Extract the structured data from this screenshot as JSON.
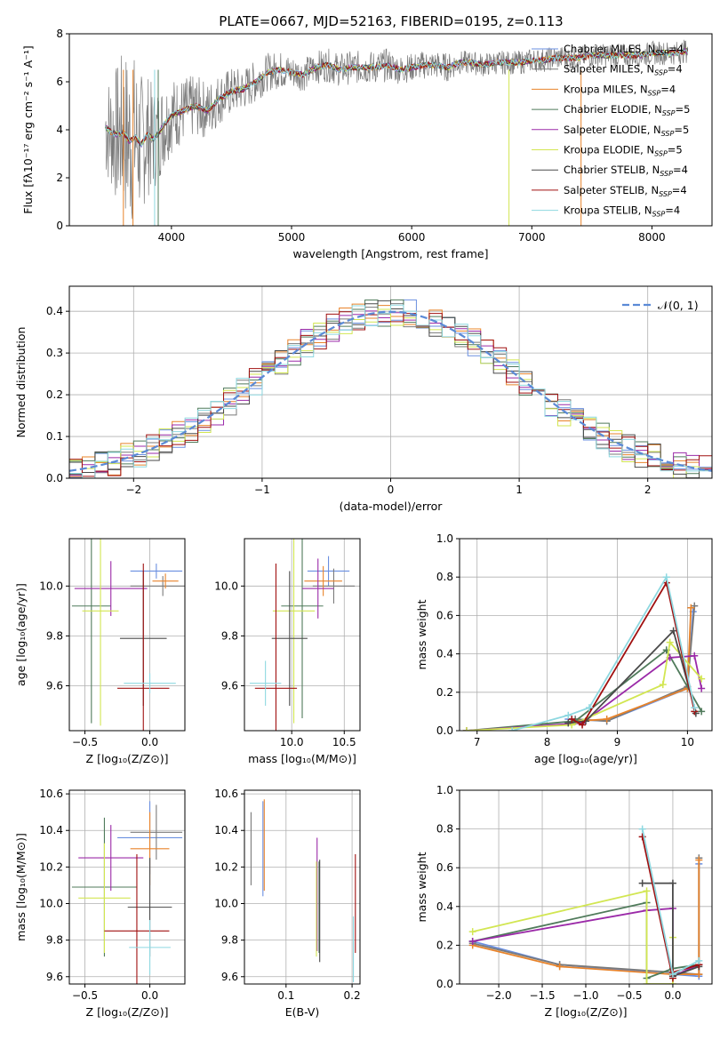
{
  "figure_title": "PLATE=0667, MJD=52163, FIBERID=0195, z=0.113",
  "colors": {
    "Chabrier MILES": "#6a8fe0",
    "Salpeter MILES": "#7a7a7a",
    "Kroupa MILES": "#e8832a",
    "Chabrier ELODIE": "#4f7a5a",
    "Salpeter ELODIE": "#9b2aa8",
    "Kroupa ELODIE": "#d2e652",
    "Chabrier STELIB": "#4a4a4a",
    "Salpeter STELIB": "#a01010",
    "Kroupa STELIB": "#8ed8e0"
  },
  "chart_data": [
    {
      "id": "spectrum",
      "type": "line",
      "title": "",
      "xlabel": "wavelength [Angstrom, rest frame]",
      "ylabel": "Flux [fλ10⁻¹⁷ erg cm⁻² s⁻¹ A⁻¹]",
      "xlim": [
        3150,
        8500
      ],
      "ylim": [
        0,
        8
      ],
      "xticks": [
        4000,
        5000,
        6000,
        7000,
        8000
      ],
      "yticks": [
        0,
        2,
        4,
        6,
        8
      ],
      "grid": false,
      "legend_position": "right",
      "legend": [
        "Chabrier MILES, N$_{SSP}$=4",
        "Salpeter MILES, N$_{SSP}$=4",
        "Kroupa MILES, N$_{SSP}$=4",
        "Chabrier ELODIE, N$_{SSP}$=5",
        "Salpeter ELODIE, N$_{SSP}$=5",
        "Kroupa ELODIE, N$_{SSP}$=5",
        "Chabrier STELIB, N$_{SSP}$=4",
        "Salpeter STELIB, N$_{SSP}$=4",
        "Kroupa STELIB, N$_{SSP}$=4"
      ],
      "legend_display": [
        "Chabrier MILES, N",
        "Salpeter MILES, N",
        "Kroupa MILES, N",
        "Chabrier ELODIE, N",
        "Salpeter ELODIE, N",
        "Kroupa ELODIE, N",
        "Chabrier STELIB, N",
        "Salpeter STELIB, N",
        "Kroupa STELIB, N"
      ],
      "legend_counts": [
        "=4",
        "=4",
        "=4",
        "=5",
        "=5",
        "=5",
        "=4",
        "=4",
        "=4"
      ],
      "legend_sub": "SSP",
      "data_x": [
        3450,
        3500,
        3550,
        3600,
        3650,
        3700,
        3750,
        3800,
        3850,
        3900,
        3950,
        4000,
        4100,
        4200,
        4300,
        4400,
        4500,
        4600,
        4700,
        4800,
        4900,
        5000,
        5100,
        5200,
        5300,
        5400,
        5500,
        5600,
        5700,
        5800,
        5900,
        6000,
        6100,
        6200,
        6300,
        6400,
        6500,
        6600,
        6700,
        6800,
        6900,
        7000,
        7100,
        7200,
        7300,
        7400,
        7500,
        7600,
        7700,
        7800,
        7900,
        8000,
        8100,
        8200,
        8300
      ],
      "model_y": [
        4.1,
        3.9,
        3.8,
        3.9,
        3.5,
        3.7,
        3.4,
        3.8,
        3.6,
        3.9,
        4.3,
        4.6,
        4.8,
        5.0,
        4.8,
        5.3,
        5.6,
        5.7,
        6.0,
        6.4,
        6.5,
        6.4,
        6.3,
        6.6,
        6.7,
        6.5,
        6.6,
        6.6,
        6.6,
        6.7,
        6.5,
        6.6,
        6.7,
        6.7,
        6.6,
        6.8,
        6.8,
        6.7,
        6.8,
        6.8,
        6.8,
        6.9,
        6.9,
        7.0,
        7.0,
        7.0,
        7.1,
        7.1,
        7.1,
        7.1,
        7.1,
        7.2,
        7.2,
        7.2,
        7.3
      ],
      "data_amp": [
        2.2,
        2.5,
        3.0,
        3.5,
        3.8,
        3.5,
        3.0,
        2.6,
        2.2,
        2.0,
        1.8,
        1.6,
        1.4,
        1.3,
        1.2,
        1.1,
        1.0,
        0.9,
        0.9,
        0.8,
        0.8,
        0.7,
        0.7,
        0.7,
        0.7,
        0.7,
        0.7,
        0.7,
        0.7,
        0.7,
        0.6,
        0.6,
        0.6,
        0.6,
        0.6,
        0.5,
        0.5,
        0.5,
        0.5,
        0.5,
        0.5,
        0.5,
        0.5,
        0.5,
        0.5,
        0.5,
        0.5,
        0.5,
        0.5,
        0.5,
        0.5,
        0.5,
        0.5,
        0.5,
        0.5
      ]
    },
    {
      "id": "residuals",
      "type": "histogram",
      "title": "",
      "xlabel": "(data-model)/error",
      "ylabel": "Normed distribution",
      "xlim": [
        -2.5,
        2.5
      ],
      "ylim": [
        0,
        0.46
      ],
      "xticks": [
        -2,
        -1,
        0,
        1,
        2
      ],
      "xtick_labels": [
        "−2",
        "−1",
        "0",
        "1",
        "2"
      ],
      "yticks": [
        0,
        0.1,
        0.2,
        0.3,
        0.4
      ],
      "ytick_labels": [
        "0.0",
        "0.1",
        "0.2",
        "0.3",
        "0.4"
      ],
      "grid": true,
      "legend_position": "top-right",
      "normal_label": "𝒩(0, 1)",
      "bin_width": 0.1
    },
    {
      "id": "age_vs_Z",
      "type": "errorbar",
      "xlabel": "Z [log₁₀(Z/Z⊙)]",
      "ylabel": "age  [log₁₀(age/yr)]",
      "xlim": [
        -0.62,
        0.27
      ],
      "ylim": [
        9.42,
        10.19
      ],
      "xticks": [
        -0.5,
        0.0
      ],
      "xtick_labels": [
        "−0.5",
        "0.0"
      ],
      "yticks": [
        9.6,
        9.8,
        10.0
      ],
      "ytick_labels": [
        "9.6",
        "9.8",
        "10.0"
      ],
      "grid": true,
      "points": [
        {
          "model": "Chabrier MILES",
          "x": 0.05,
          "xerr": 0.2,
          "y": 10.06,
          "yerr": 0.03
        },
        {
          "model": "Salpeter MILES",
          "x": 0.1,
          "xerr": 0.25,
          "y": 10.0,
          "yerr": 0.04
        },
        {
          "model": "Kroupa MILES",
          "x": 0.12,
          "xerr": 0.1,
          "y": 10.02,
          "yerr": 0.03
        },
        {
          "model": "Chabrier ELODIE",
          "x": -0.45,
          "xerr": 0.15,
          "y": 9.92,
          "yerr": 0.47
        },
        {
          "model": "Salpeter ELODIE",
          "x": -0.3,
          "xerr": 0.28,
          "y": 9.99,
          "yerr": 0.11
        },
        {
          "model": "Kroupa ELODIE",
          "x": -0.38,
          "xerr": 0.14,
          "y": 9.9,
          "yerr": 0.46
        },
        {
          "model": "Chabrier STELIB",
          "x": -0.05,
          "xerr": 0.18,
          "y": 9.79,
          "yerr": 0.27
        },
        {
          "model": "Salpeter STELIB",
          "x": -0.05,
          "xerr": 0.2,
          "y": 9.59,
          "yerr": 0.5
        },
        {
          "model": "Kroupa STELIB",
          "x": 0.0,
          "xerr": 0.2,
          "y": 9.61,
          "yerr": 0.04
        }
      ]
    },
    {
      "id": "age_vs_mass",
      "type": "errorbar",
      "xlabel": "mass [log₁₀(M/M⊙)]",
      "ylabel": "",
      "xlim": [
        9.55,
        10.65
      ],
      "ylim": [
        9.42,
        10.19
      ],
      "xticks": [
        10.0,
        10.5
      ],
      "xtick_labels": [
        "10.0",
        "10.5"
      ],
      "yticks": [
        9.6,
        9.8,
        10.0
      ],
      "ytick_labels": [
        "9.6",
        "9.8",
        "10.0"
      ],
      "grid": true,
      "points": [
        {
          "model": "Chabrier MILES",
          "x": 10.35,
          "xerr": 0.2,
          "y": 10.06,
          "yerr": 0.06
        },
        {
          "model": "Salpeter MILES",
          "x": 10.4,
          "xerr": 0.2,
          "y": 10.0,
          "yerr": 0.07
        },
        {
          "model": "Kroupa MILES",
          "x": 10.3,
          "xerr": 0.18,
          "y": 10.02,
          "yerr": 0.06
        },
        {
          "model": "Chabrier ELODIE",
          "x": 10.1,
          "xerr": 0.2,
          "y": 9.92,
          "yerr": 0.45
        },
        {
          "model": "Salpeter ELODIE",
          "x": 10.25,
          "xerr": 0.15,
          "y": 9.99,
          "yerr": 0.12
        },
        {
          "model": "Kroupa ELODIE",
          "x": 10.02,
          "xerr": 0.2,
          "y": 9.9,
          "yerr": 0.45
        },
        {
          "model": "Chabrier STELIB",
          "x": 9.98,
          "xerr": 0.17,
          "y": 9.79,
          "yerr": 0.27
        },
        {
          "model": "Salpeter STELIB",
          "x": 9.85,
          "xerr": 0.2,
          "y": 9.59,
          "yerr": 0.5
        },
        {
          "model": "Kroupa STELIB",
          "x": 9.75,
          "xerr": 0.15,
          "y": 9.61,
          "yerr": 0.09
        }
      ]
    },
    {
      "id": "mass_weight_vs_age",
      "type": "line",
      "xlabel": "age  [log₁₀(age/yr)]",
      "ylabel": "mass weight",
      "xlim": [
        6.75,
        10.35
      ],
      "ylim": [
        0,
        1.0
      ],
      "xticks": [
        7,
        8,
        9,
        10
      ],
      "xtick_labels": [
        "7",
        "8",
        "9",
        "10"
      ],
      "yticks": [
        0,
        0.2,
        0.4,
        0.6,
        0.8,
        1.0
      ],
      "ytick_labels": [
        "0.0",
        "0.2",
        "0.4",
        "0.6",
        "0.8",
        "1.0"
      ],
      "grid": true,
      "series": [
        {
          "name": "Chabrier MILES",
          "x": [
            8.3,
            8.85,
            10.0,
            10.08
          ],
          "y": [
            0.06,
            0.05,
            0.22,
            0.62
          ]
        },
        {
          "name": "Salpeter MILES",
          "x": [
            8.4,
            8.85,
            10.0,
            10.1
          ],
          "y": [
            0.06,
            0.05,
            0.23,
            0.65
          ]
        },
        {
          "name": "Kroupa MILES",
          "x": [
            8.45,
            8.85,
            10.0,
            10.05
          ],
          "y": [
            0.05,
            0.06,
            0.22,
            0.64
          ]
        },
        {
          "name": "Chabrier ELODIE",
          "x": [
            6.85,
            8.4,
            9.7,
            10.2
          ],
          "y": [
            0.0,
            0.05,
            0.42,
            0.1
          ]
        },
        {
          "name": "Salpeter ELODIE",
          "x": [
            6.85,
            8.5,
            9.75,
            10.1,
            10.2
          ],
          "y": [
            0.0,
            0.04,
            0.38,
            0.39,
            0.22
          ]
        },
        {
          "name": "Kroupa ELODIE",
          "x": [
            6.85,
            8.35,
            9.65,
            9.75,
            10.2
          ],
          "y": [
            0.0,
            0.03,
            0.24,
            0.46,
            0.27
          ]
        },
        {
          "name": "Chabrier STELIB",
          "x": [
            8.3,
            8.55,
            9.8,
            10.12
          ],
          "y": [
            0.04,
            0.05,
            0.52,
            0.09
          ]
        },
        {
          "name": "Salpeter STELIB",
          "x": [
            8.35,
            8.5,
            9.7,
            10.1
          ],
          "y": [
            0.06,
            0.03,
            0.77,
            0.1
          ]
        },
        {
          "name": "Kroupa STELIB",
          "x": [
            7.5,
            8.3,
            8.6,
            9.7,
            10.1
          ],
          "y": [
            0.0,
            0.08,
            0.12,
            0.8,
            0.12
          ]
        }
      ]
    },
    {
      "id": "mass_vs_Z",
      "type": "errorbar",
      "xlabel": "Z [log₁₀(Z/Z⊙)]",
      "ylabel": "mass [log₁₀(M/M⊙)]",
      "xlim": [
        -0.62,
        0.27
      ],
      "ylim": [
        9.56,
        10.62
      ],
      "xticks": [
        -0.5,
        0.0
      ],
      "xtick_labels": [
        "−0.5",
        "0.0"
      ],
      "yticks": [
        9.6,
        9.8,
        10.0,
        10.2,
        10.4,
        10.6
      ],
      "ytick_labels": [
        "9.6",
        "9.8",
        "10.0",
        "10.2",
        "10.4",
        "10.6"
      ],
      "grid": true,
      "points": [
        {
          "model": "Chabrier MILES",
          "x": 0.0,
          "xerr": 0.25,
          "y": 10.36,
          "yerr": 0.2
        },
        {
          "model": "Salpeter MILES",
          "x": 0.05,
          "xerr": 0.2,
          "y": 10.39,
          "yerr": 0.15
        },
        {
          "model": "Kroupa MILES",
          "x": 0.0,
          "xerr": 0.15,
          "y": 10.3,
          "yerr": 0.2
        },
        {
          "model": "Chabrier ELODIE",
          "x": -0.35,
          "xerr": 0.25,
          "y": 10.09,
          "yerr": 0.38
        },
        {
          "model": "Salpeter ELODIE",
          "x": -0.3,
          "xerr": 0.25,
          "y": 10.25,
          "yerr": 0.18
        },
        {
          "model": "Kroupa ELODIE",
          "x": -0.35,
          "xerr": 0.2,
          "y": 10.03,
          "yerr": 0.3
        },
        {
          "model": "Chabrier STELIB",
          "x": 0.0,
          "xerr": 0.17,
          "y": 9.98,
          "yerr": 0.27
        },
        {
          "model": "Salpeter STELIB",
          "x": -0.1,
          "xerr": 0.25,
          "y": 9.85,
          "yerr": 0.42
        },
        {
          "model": "Kroupa STELIB",
          "x": 0.0,
          "xerr": 0.16,
          "y": 9.76,
          "yerr": 0.15
        }
      ]
    },
    {
      "id": "mass_vs_ebv",
      "type": "errorbar",
      "xlabel": "E(B-V)",
      "ylabel": "",
      "xlim": [
        0.037,
        0.212
      ],
      "ylim": [
        9.56,
        10.62
      ],
      "xticks": [
        0.1,
        0.2
      ],
      "xtick_labels": [
        "0.1",
        "0.2"
      ],
      "yticks": [
        9.6,
        9.8,
        10.0,
        10.2,
        10.4,
        10.6
      ],
      "ytick_labels": [
        "9.6",
        "9.8",
        "10.0",
        "10.2",
        "10.4",
        "10.6"
      ],
      "grid": true,
      "points": [
        {
          "model": "Chabrier MILES",
          "x": 0.065,
          "y": 10.3,
          "yerr": 0.26
        },
        {
          "model": "Salpeter MILES",
          "x": 0.047,
          "y": 10.3,
          "yerr": 0.2
        },
        {
          "model": "Kroupa MILES",
          "x": 0.067,
          "y": 10.32,
          "yerr": 0.25
        },
        {
          "model": "Chabrier ELODIE",
          "x": 0.15,
          "y": 9.98,
          "yerr": 0.25
        },
        {
          "model": "Salpeter ELODIE",
          "x": 0.147,
          "y": 10.05,
          "yerr": 0.31
        },
        {
          "model": "Kroupa ELODIE",
          "x": 0.146,
          "y": 9.97,
          "yerr": 0.26
        },
        {
          "model": "Chabrier STELIB",
          "x": 0.151,
          "y": 9.96,
          "yerr": 0.28
        },
        {
          "model": "Salpeter STELIB",
          "x": 0.205,
          "y": 10.0,
          "yerr": 0.27
        },
        {
          "model": "Kroupa STELIB",
          "x": 0.202,
          "y": 9.75,
          "yerr": 0.18
        }
      ]
    },
    {
      "id": "mass_weight_vs_Z",
      "type": "line",
      "xlabel": "Z [log₁₀(Z/Z⊙)]",
      "ylabel": "mass weight",
      "xlim": [
        -2.45,
        0.45
      ],
      "ylim": [
        0,
        1.0
      ],
      "xticks": [
        -2.0,
        -1.5,
        -1.0,
        -0.5,
        0.0
      ],
      "xtick_labels": [
        "−2.0",
        "−1.5",
        "−1.0",
        "−0.5",
        "0.0"
      ],
      "yticks": [
        0,
        0.2,
        0.4,
        0.6,
        0.8,
        1.0
      ],
      "ytick_labels": [
        "0.0",
        "0.2",
        "0.4",
        "0.6",
        "0.8",
        "1.0"
      ],
      "grid": true,
      "series": [
        {
          "name": "Chabrier MILES",
          "x": [
            -2.3,
            -1.3,
            0.0,
            0.3,
            0.3
          ],
          "y": [
            0.22,
            0.1,
            0.05,
            0.04,
            0.62
          ]
        },
        {
          "name": "Salpeter MILES",
          "x": [
            -2.3,
            -1.3,
            0.0,
            0.3,
            0.3
          ],
          "y": [
            0.21,
            0.1,
            0.06,
            0.05,
            0.65
          ]
        },
        {
          "name": "Kroupa MILES",
          "x": [
            -2.3,
            -1.3,
            0.0,
            0.3,
            0.3
          ],
          "y": [
            0.2,
            0.09,
            0.05,
            0.05,
            0.64
          ]
        },
        {
          "name": "Chabrier ELODIE",
          "x": [
            -2.3,
            -0.3,
            -0.3,
            0.0,
            0.3
          ],
          "y": [
            0.22,
            0.42,
            0.03,
            0.08,
            0.1
          ]
        },
        {
          "name": "Salpeter ELODIE",
          "x": [
            -2.3,
            -0.3,
            0.0,
            0.0,
            0.3
          ],
          "y": [
            0.22,
            0.38,
            0.39,
            0.04,
            0.1
          ]
        },
        {
          "name": "Kroupa ELODIE",
          "x": [
            -2.3,
            -0.3,
            -0.3,
            0.0,
            0.0
          ],
          "y": [
            0.27,
            0.48,
            0.0,
            0.0,
            0.24
          ]
        },
        {
          "name": "Chabrier STELIB",
          "x": [
            -0.35,
            0.0,
            0.0,
            0.3
          ],
          "y": [
            0.52,
            0.52,
            0.04,
            0.09
          ]
        },
        {
          "name": "Salpeter STELIB",
          "x": [
            -0.35,
            0.0,
            0.0,
            0.3
          ],
          "y": [
            0.76,
            0.03,
            0.06,
            0.1
          ]
        },
        {
          "name": "Kroupa STELIB",
          "x": [
            -0.35,
            0.0,
            0.3
          ],
          "y": [
            0.8,
            0.05,
            0.12
          ]
        }
      ]
    }
  ]
}
